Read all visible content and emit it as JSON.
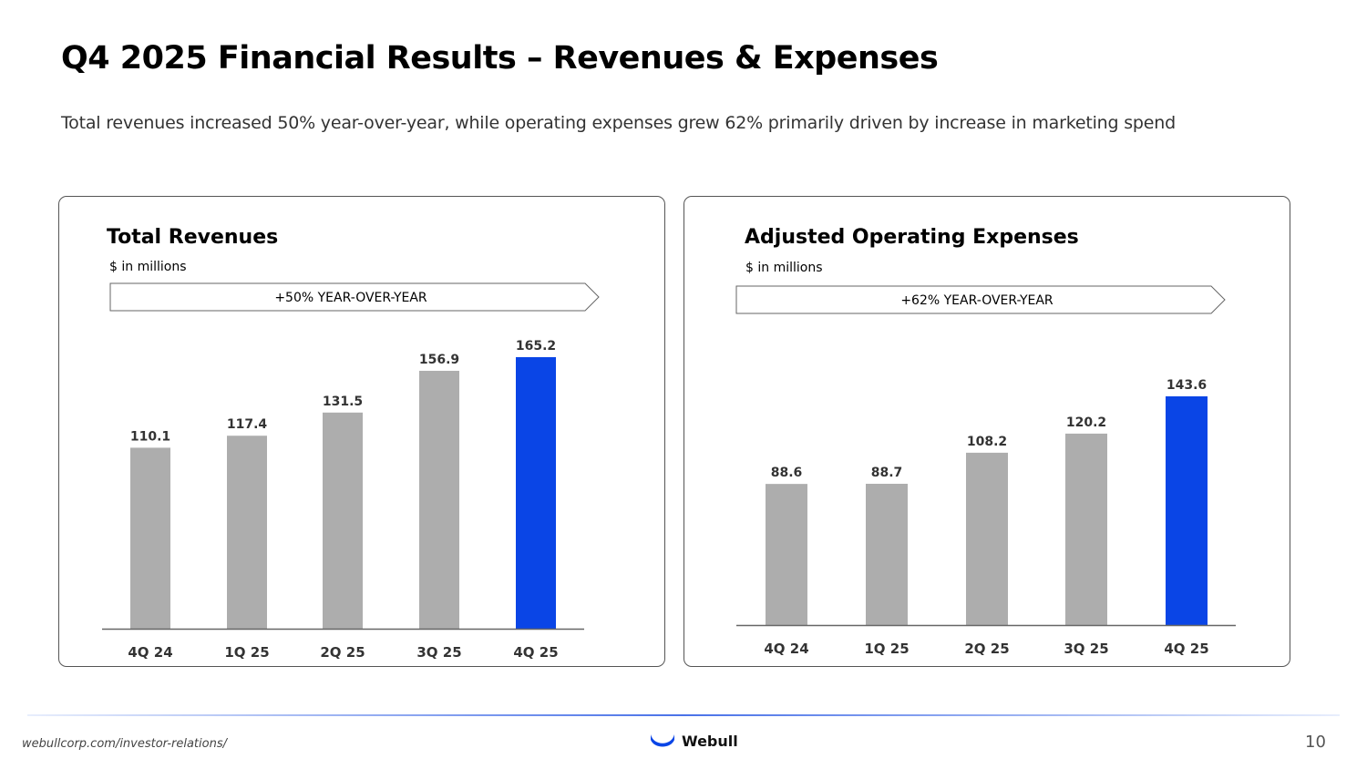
{
  "slide": {
    "title": "Q4 2025 Financial Results – Revenues & Expenses",
    "subtitle": "Total revenues increased 50% year-over-year, while operating expenses grew 62% primarily driven by increase in marketing spend"
  },
  "chart_data": [
    {
      "type": "bar",
      "title": "Total Revenues",
      "unit": "$ in millions",
      "banner": "+50% YEAR-OVER-YEAR",
      "categories": [
        "4Q 24",
        "1Q 25",
        "2Q 25",
        "3Q 25",
        "4Q 25"
      ],
      "values": [
        110.1,
        117.4,
        131.5,
        156.9,
        165.2
      ],
      "labels": [
        "110.1",
        "117.4",
        "131.5",
        "156.9",
        "165.2"
      ],
      "highlight_index": 4,
      "bar_color": "#adadad",
      "highlight_color": "#0a45e6",
      "xlabel": "",
      "ylabel": "",
      "ylim": [
        0,
        165.2
      ]
    },
    {
      "type": "bar",
      "title": "Adjusted Operating Expenses",
      "unit": "$ in millions",
      "banner": "+62% YEAR-OVER-YEAR",
      "categories": [
        "4Q 24",
        "1Q 25",
        "2Q 25",
        "3Q 25",
        "4Q 25"
      ],
      "values": [
        88.6,
        88.7,
        108.2,
        120.2,
        143.6
      ],
      "labels": [
        "88.6",
        "88.7",
        "108.2",
        "120.2",
        "143.6"
      ],
      "highlight_index": 4,
      "bar_color": "#adadad",
      "highlight_color": "#0a45e6",
      "xlabel": "",
      "ylabel": "",
      "ylim": [
        0,
        143.6
      ]
    }
  ],
  "footer": {
    "url": "webullcorp.com/investor-relations/",
    "brand": "Webull",
    "logo_icon": "webull-logo-icon",
    "page_number": "10"
  }
}
